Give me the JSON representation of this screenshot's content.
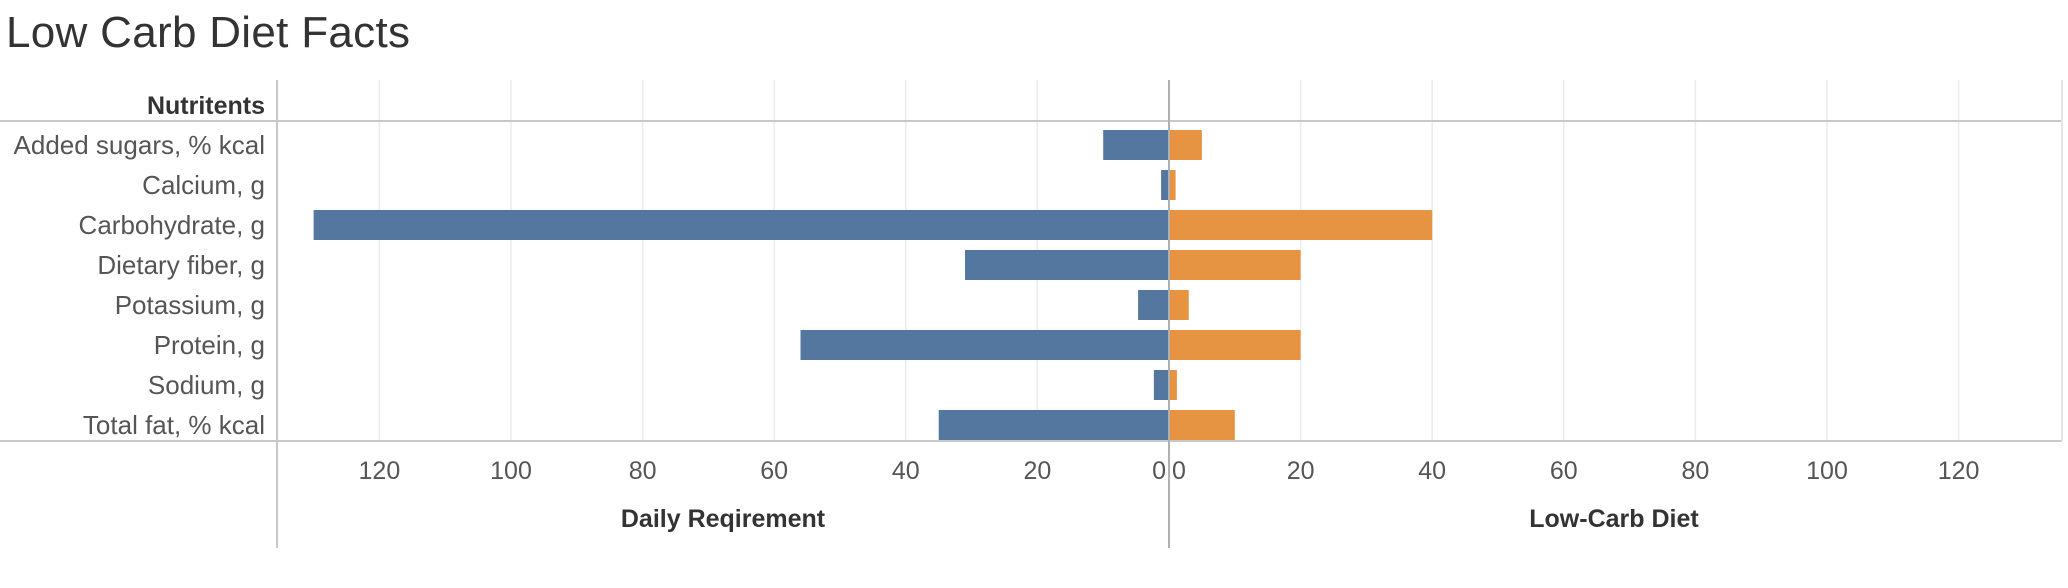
{
  "title": "Low Carb Diet Facts",
  "header_label": "Nutritents",
  "chart_data": {
    "type": "bar",
    "orientation": "horizontal",
    "layout": "diverging",
    "categories": [
      "Added sugars, % kcal",
      "Calcium, g",
      "Carbohydrate, g",
      "Dietary fiber, g",
      "Potassium, g",
      "Protein, g",
      "Sodium, g",
      "Total fat, % kcal"
    ],
    "series": [
      {
        "name": "Daily Reqirement",
        "side": "left",
        "color": "#54779f",
        "values": [
          10,
          1.2,
          130,
          31,
          4.7,
          56,
          2.3,
          35
        ]
      },
      {
        "name": "Low-Carb Diet",
        "side": "right",
        "color": "#e69342",
        "values": [
          5,
          1,
          40,
          20,
          3,
          20,
          1.2,
          10
        ]
      }
    ],
    "xlim": [
      0,
      135
    ],
    "ticks": [
      120,
      100,
      80,
      60,
      40,
      20,
      0
    ],
    "grid": true
  }
}
